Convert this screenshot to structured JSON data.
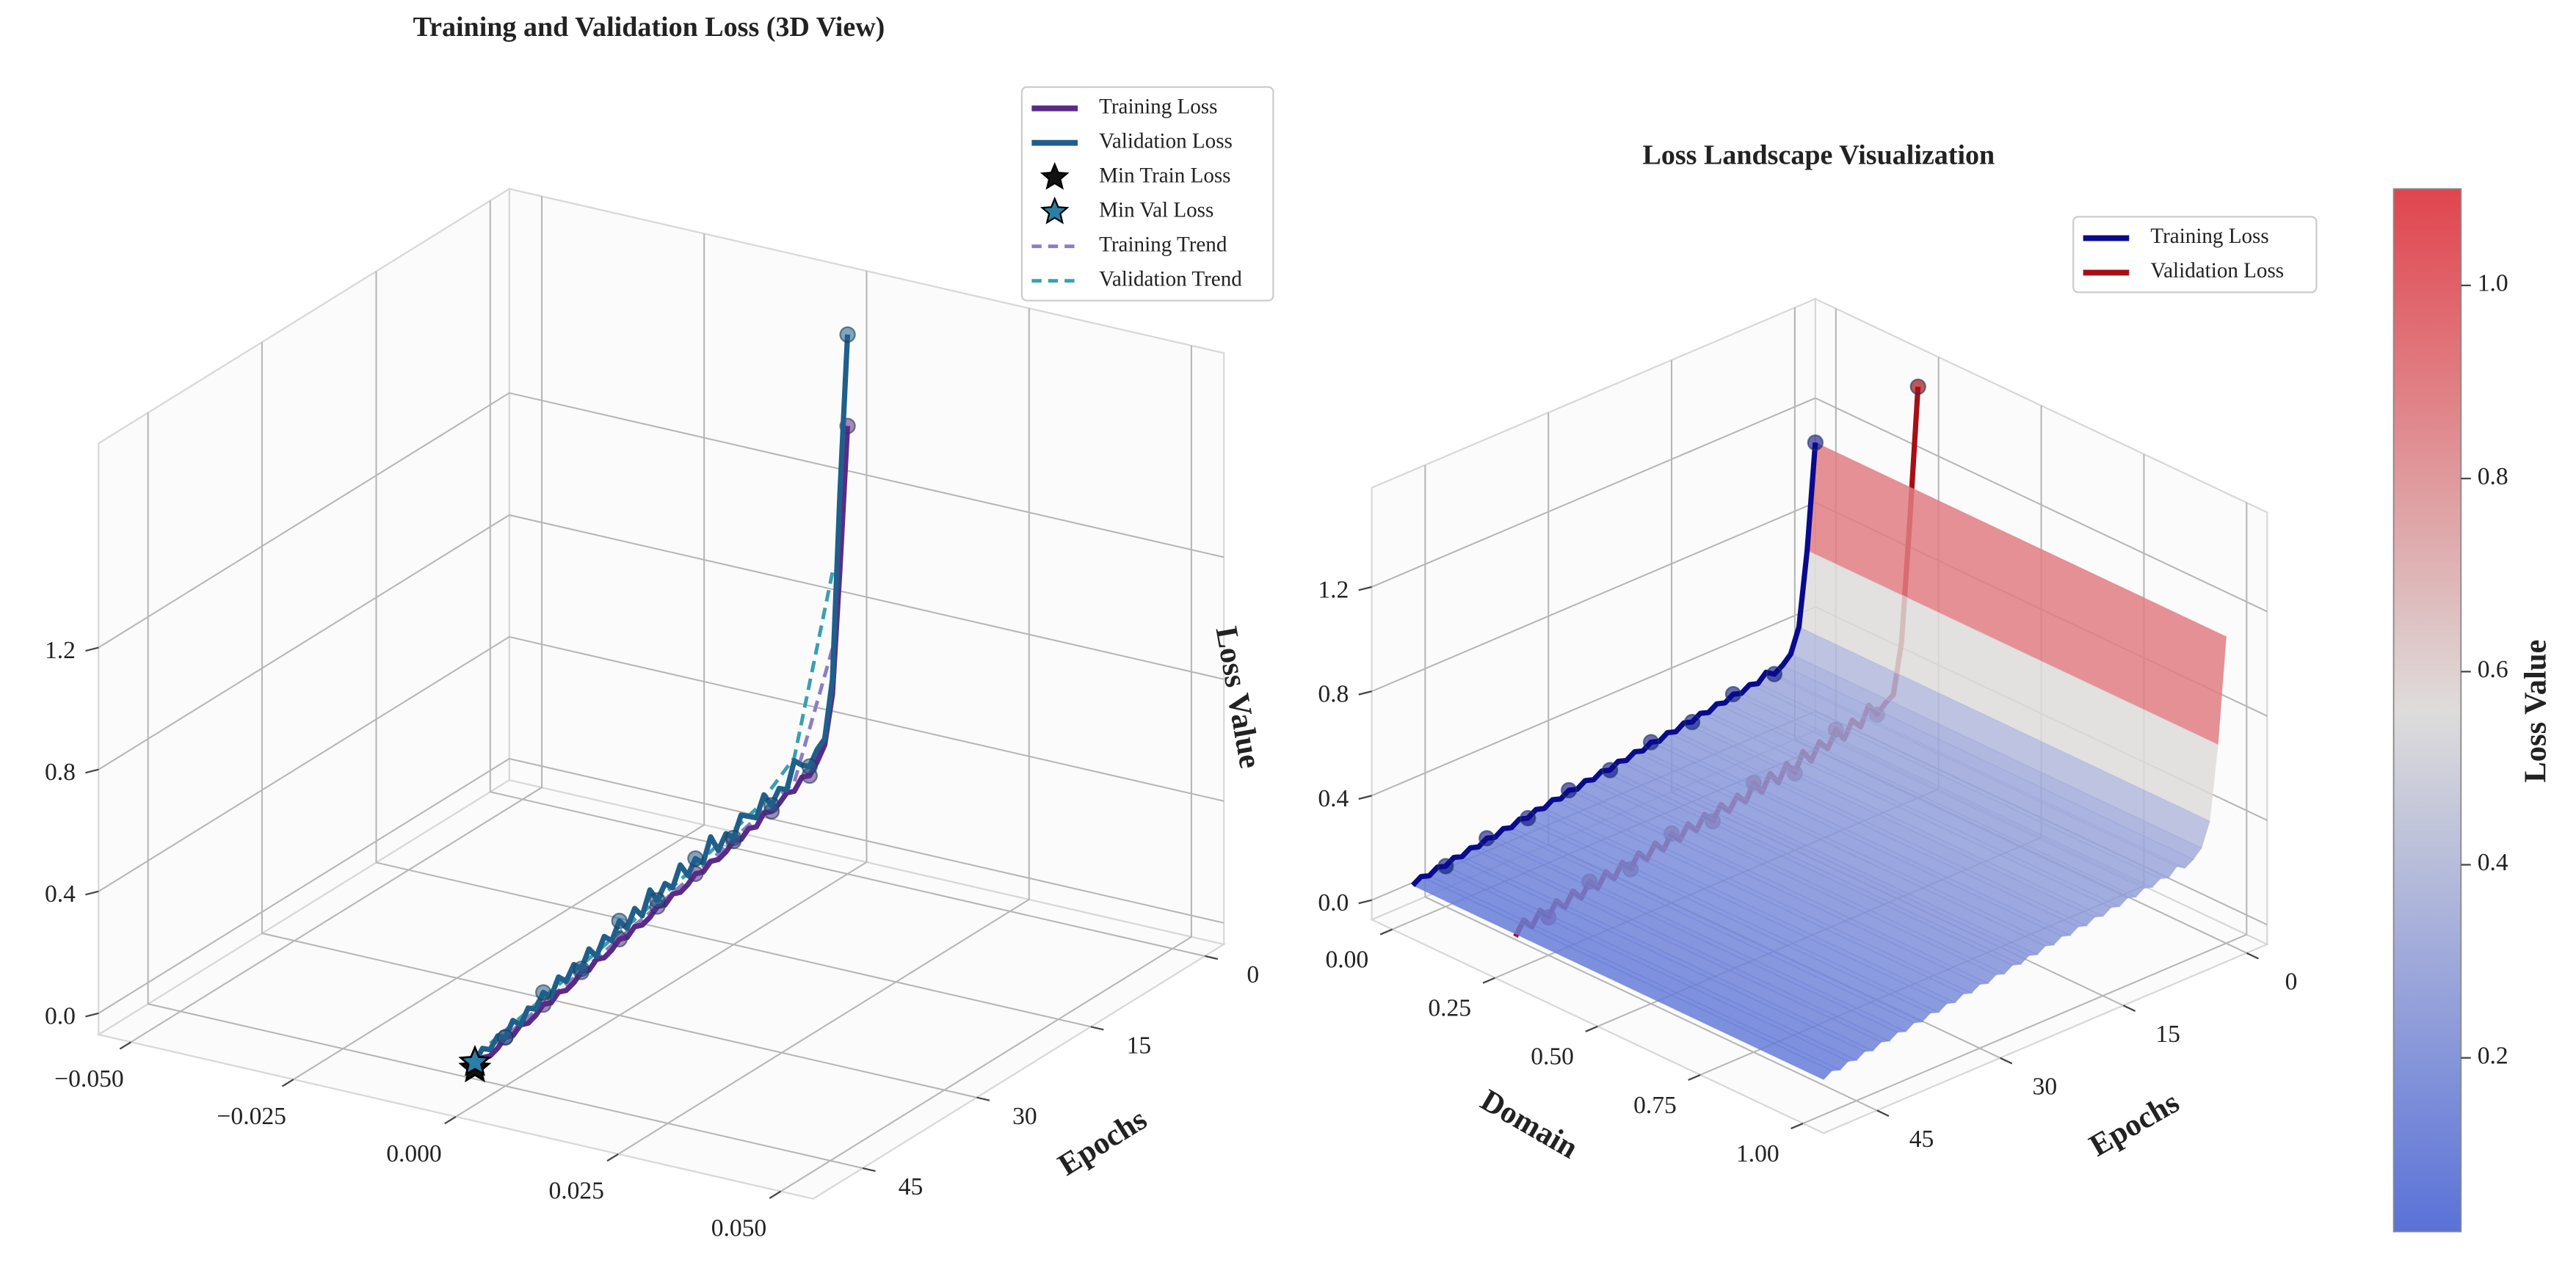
{
  "chart_data": [
    {
      "type": "line3d",
      "title": "Training and Validation Loss (3D View)",
      "xlim": [
        -0.055,
        0.055
      ],
      "xticks": [
        {
          "value": -0.05,
          "label": "−0.050"
        },
        {
          "value": -0.025,
          "label": "−0.025"
        },
        {
          "value": 0,
          "label": "0.000"
        },
        {
          "value": 0.025,
          "label": "0.025"
        },
        {
          "value": 0.05,
          "label": "0.050"
        }
      ],
      "ylabel": "Epochs",
      "ylim": [
        -2.5,
        51.5
      ],
      "yticks": [
        0,
        15,
        30,
        45
      ],
      "zlabel": "Loss Value",
      "zlim": [
        -0.07,
        1.87
      ],
      "zticks": [
        {
          "value": 0,
          "label": "0.0"
        },
        0.4,
        0.8,
        1.2
      ],
      "marker_every": 5,
      "legend": "upper right",
      "epochs": [
        0,
        1,
        2,
        3,
        4,
        5,
        6,
        7,
        8,
        9,
        10,
        11,
        12,
        13,
        14,
        15,
        16,
        17,
        18,
        19,
        20,
        21,
        22,
        23,
        24,
        25,
        26,
        27,
        28,
        29,
        30,
        31,
        32,
        33,
        34,
        35,
        36,
        37,
        38,
        39,
        40,
        41,
        42,
        43,
        44,
        45,
        46,
        47,
        48,
        49
      ],
      "series": [
        {
          "name": "Training Loss",
          "color": "#5b2a86",
          "domain": 0,
          "values": [
            1.4,
            0.95,
            0.55,
            0.4,
            0.36,
            0.33,
            0.34,
            0.31,
            0.32,
            0.3,
            0.29,
            0.3,
            0.27,
            0.28,
            0.26,
            0.27,
            0.25,
            0.24,
            0.25,
            0.23,
            0.24,
            0.22,
            0.21,
            0.22,
            0.2,
            0.21,
            0.19,
            0.18,
            0.19,
            0.17,
            0.18,
            0.16,
            0.15,
            0.16,
            0.14,
            0.15,
            0.13,
            0.12,
            0.13,
            0.11,
            0.12,
            0.1,
            0.09,
            0.1,
            0.08,
            0.09,
            0.07,
            0.06,
            0.07,
            0.05
          ]
        },
        {
          "name": "Validation Loss",
          "color": "#1f5f8b",
          "domain": 0,
          "values": [
            1.7,
            1.2,
            0.6,
            0.42,
            0.4,
            0.36,
            0.38,
            0.41,
            0.33,
            0.35,
            0.31,
            0.36,
            0.3,
            0.32,
            0.34,
            0.28,
            0.31,
            0.27,
            0.33,
            0.26,
            0.29,
            0.25,
            0.3,
            0.24,
            0.27,
            0.23,
            0.28,
            0.21,
            0.25,
            0.2,
            0.24,
            0.19,
            0.22,
            0.17,
            0.21,
            0.16,
            0.19,
            0.15,
            0.18,
            0.13,
            0.16,
            0.12,
            0.14,
            0.1,
            0.13,
            0.09,
            0.11,
            0.08,
            0.1,
            0.07
          ]
        }
      ],
      "minima": [
        {
          "name": "Min Train Loss",
          "color": "#111111",
          "domain": 0,
          "epoch": 49,
          "value": 0.05
        },
        {
          "name": "Min Val Loss",
          "color": "#2a7fa8",
          "domain": 0,
          "epoch": 49,
          "value": 0.07
        }
      ],
      "trends": [
        {
          "name": "Training Trend",
          "color": "#8e7cc3",
          "domain": 0,
          "epochs": [
            2,
            7,
            12,
            17,
            22,
            27,
            32,
            37,
            42,
            47
          ],
          "values": [
            0.7,
            0.34,
            0.3,
            0.26,
            0.23,
            0.2,
            0.17,
            0.14,
            0.11,
            0.08
          ]
        },
        {
          "name": "Validation Trend",
          "color": "#3a9fb0",
          "domain": 0,
          "epochs": [
            2,
            7,
            12,
            17,
            22,
            27,
            32,
            37,
            42,
            47
          ],
          "values": [
            0.95,
            0.42,
            0.33,
            0.29,
            0.25,
            0.22,
            0.19,
            0.16,
            0.13,
            0.1
          ]
        }
      ]
    },
    {
      "type": "surface3d",
      "title": "Loss Landscape Visualization",
      "xlabel": "Domain",
      "xlim": [
        -0.05,
        1.05
      ],
      "xticks": [
        {
          "value": 0,
          "label": "0.00"
        },
        0.25,
        {
          "value": 0.5,
          "label": "0.50"
        },
        0.75,
        {
          "value": 1,
          "label": "1.00"
        }
      ],
      "ylabel": "Epochs",
      "ylim": [
        -2.5,
        51.5
      ],
      "yticks": [
        0,
        15,
        30,
        45
      ],
      "zlim": [
        -0.075,
        1.58
      ],
      "zticks": [
        {
          "value": 0,
          "label": "0.0"
        },
        0.4,
        0.8,
        1.2
      ],
      "marker_every": 5,
      "legend": "upper right",
      "epochs": [
        0,
        1,
        2,
        3,
        4,
        5,
        6,
        7,
        8,
        9,
        10,
        11,
        12,
        13,
        14,
        15,
        16,
        17,
        18,
        19,
        20,
        21,
        22,
        23,
        24,
        25,
        26,
        27,
        28,
        29,
        30,
        31,
        32,
        33,
        34,
        35,
        36,
        37,
        38,
        39,
        40,
        41,
        42,
        43,
        44,
        45,
        46,
        47,
        48,
        49
      ],
      "series": [
        {
          "name": "Training Loss",
          "color": "#0a0a8c",
          "domain": 0,
          "values": [
            1.1,
            0.7,
            0.42,
            0.33,
            0.3,
            0.28,
            0.3,
            0.27,
            0.28,
            0.26,
            0.27,
            0.25,
            0.26,
            0.24,
            0.25,
            0.23,
            0.24,
            0.22,
            0.23,
            0.21,
            0.22,
            0.2,
            0.21,
            0.19,
            0.2,
            0.18,
            0.19,
            0.17,
            0.18,
            0.16,
            0.17,
            0.15,
            0.16,
            0.14,
            0.15,
            0.13,
            0.14,
            0.12,
            0.13,
            0.11,
            0.12,
            0.1,
            0.11,
            0.09,
            0.1,
            0.08,
            0.09,
            0.07,
            0.08,
            0.06
          ]
        },
        {
          "name": "Validation Loss",
          "color": "#a50f15",
          "domain": 0.25,
          "values": [
            1.5,
            1.0,
            0.55,
            0.36,
            0.34,
            0.31,
            0.36,
            0.29,
            0.33,
            0.27,
            0.32,
            0.26,
            0.3,
            0.24,
            0.29,
            0.22,
            0.27,
            0.21,
            0.26,
            0.2,
            0.25,
            0.19,
            0.23,
            0.18,
            0.22,
            0.17,
            0.21,
            0.16,
            0.2,
            0.15,
            0.19,
            0.14,
            0.18,
            0.13,
            0.17,
            0.12,
            0.16,
            0.11,
            0.15,
            0.1,
            0.14,
            0.09,
            0.13,
            0.08,
            0.12,
            0.07,
            0.11,
            0.06,
            0.1,
            0.05
          ]
        }
      ],
      "surface": {
        "domain": [
          0,
          1
        ],
        "values": [
          1.1,
          0.7,
          0.42,
          0.33,
          0.3,
          0.28,
          0.3,
          0.27,
          0.28,
          0.26,
          0.27,
          0.25,
          0.26,
          0.24,
          0.25,
          0.23,
          0.24,
          0.22,
          0.23,
          0.21,
          0.22,
          0.2,
          0.21,
          0.19,
          0.2,
          0.18,
          0.19,
          0.17,
          0.18,
          0.16,
          0.17,
          0.15,
          0.16,
          0.14,
          0.15,
          0.13,
          0.14,
          0.12,
          0.13,
          0.11,
          0.12,
          0.1,
          0.11,
          0.09,
          0.1,
          0.08,
          0.09,
          0.07,
          0.08,
          0.06
        ]
      },
      "colorbar": {
        "label": "Loss Value",
        "lim": [
          0.02,
          1.1
        ],
        "ticks": [
          0.2,
          0.4,
          0.6,
          0.8,
          {
            "value": 1,
            "label": "1.0"
          }
        ],
        "colors": [
          "#5a72d8",
          "#dedcdb",
          "#e1454e"
        ]
      }
    }
  ]
}
